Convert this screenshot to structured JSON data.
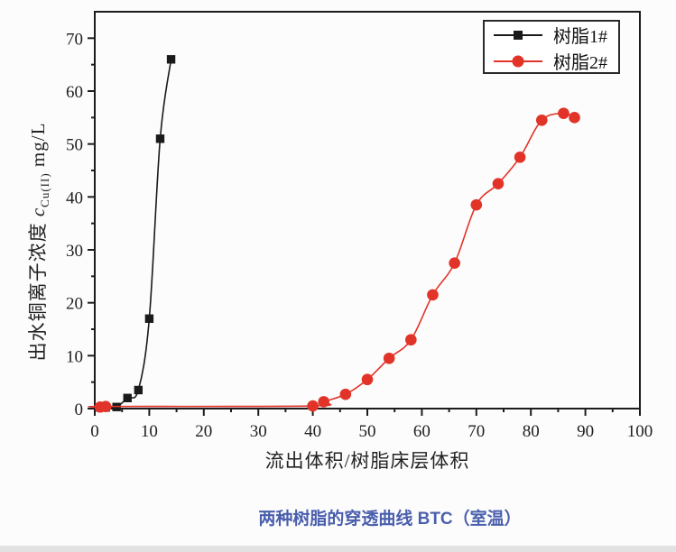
{
  "page": {
    "background": "#fcfcfc"
  },
  "chart_data": {
    "type": "line",
    "title": "",
    "xlabel": "流出体积/树脂床层体积",
    "ylabel_prefix": "出水铜离子浓度 ",
    "ylabel_symbol": "c",
    "ylabel_subscript": "Cu(II)",
    "ylabel_unit": " mg/L",
    "xlim": [
      0,
      100
    ],
    "ylim": [
      0,
      75
    ],
    "x_major_ticks": [
      0,
      10,
      20,
      30,
      40,
      50,
      60,
      70,
      80,
      90,
      100
    ],
    "y_major_ticks": [
      0,
      10,
      20,
      30,
      40,
      50,
      60,
      70
    ],
    "minor_tick_step": 5,
    "grid": false,
    "legend_position": "top-right",
    "frame_color": "#1c1c1c",
    "series": [
      {
        "name": "树脂1#",
        "color": "#1a1a1a",
        "marker": "square",
        "points": [
          [
            1,
            0.2
          ],
          [
            2,
            0.2
          ],
          [
            4,
            0.3
          ],
          [
            6,
            2
          ],
          [
            8,
            3.5
          ],
          [
            10,
            17
          ],
          [
            12,
            51
          ],
          [
            14,
            66
          ]
        ]
      },
      {
        "name": "树脂2#",
        "color": "#e23328",
        "marker": "circle",
        "points": [
          [
            1,
            0.3
          ],
          [
            2,
            0.4
          ],
          [
            40,
            0.5
          ],
          [
            42,
            1.3
          ],
          [
            46,
            2.7
          ],
          [
            50,
            5.5
          ],
          [
            54,
            9.5
          ],
          [
            58,
            13
          ],
          [
            62,
            21.5
          ],
          [
            66,
            27.5
          ],
          [
            70,
            38.5
          ],
          [
            74,
            42.5
          ],
          [
            78,
            47.5
          ],
          [
            82,
            54.5
          ],
          [
            86,
            55.8
          ],
          [
            88,
            55
          ]
        ]
      }
    ]
  },
  "caption": {
    "text": "两种树脂的穿透曲线 BTC（室温）",
    "color": "#4a5fad"
  }
}
